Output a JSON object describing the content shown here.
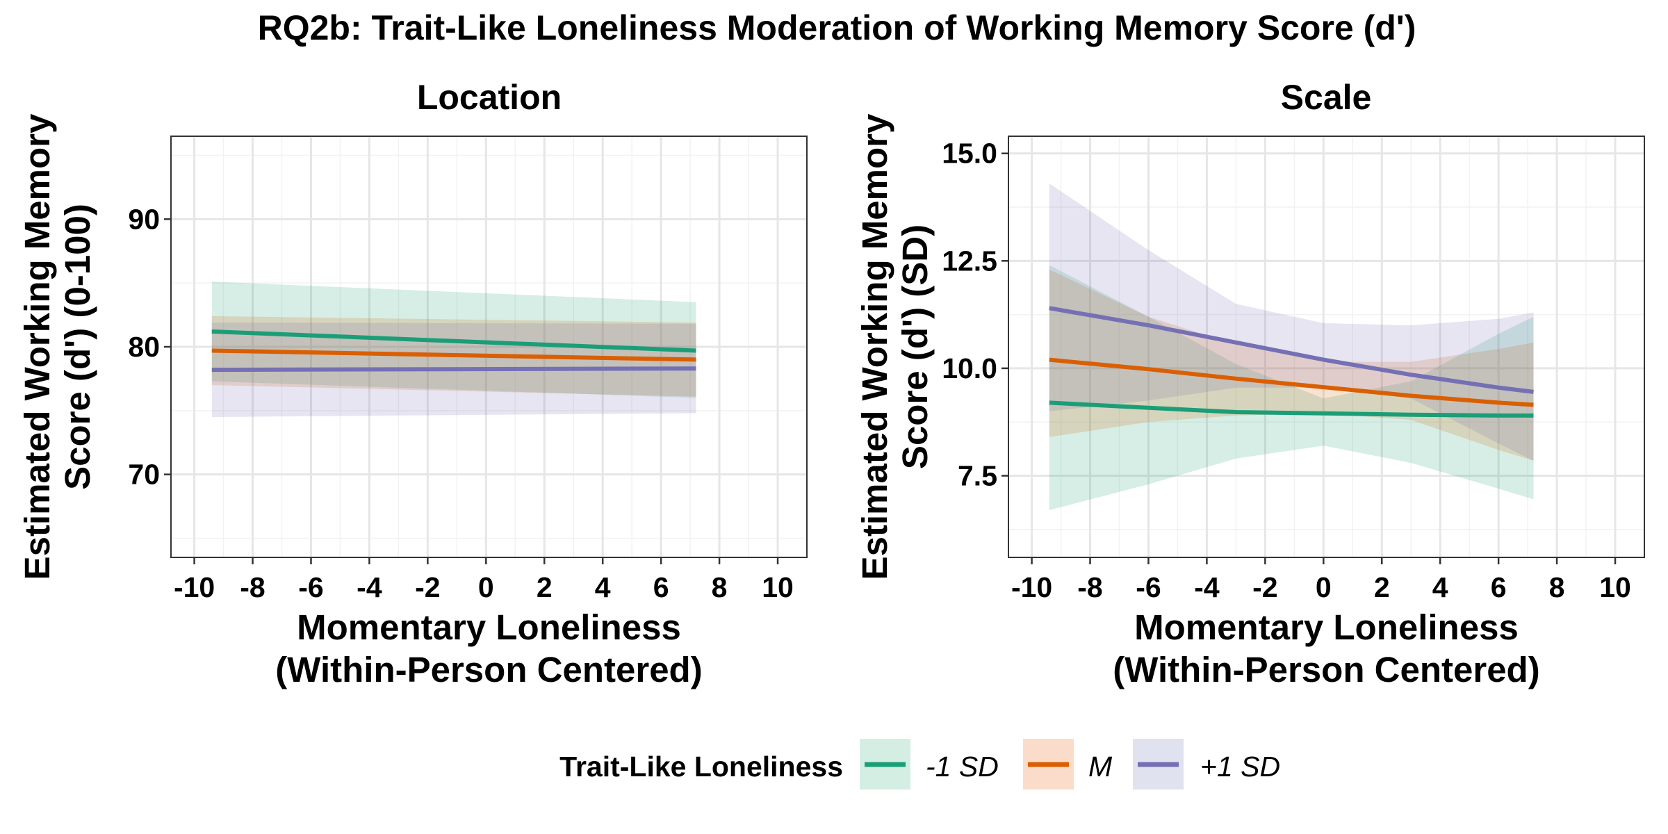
{
  "figure": {
    "title": "RQ2b: Trait-Like Loneliness Moderation of Working Memory Score (d')"
  },
  "legend": {
    "title": "Trait-Like Loneliness",
    "items": [
      {
        "label": "-1 SD",
        "color": "#1b9e77",
        "fill": "#d4eee4"
      },
      {
        "label": "M",
        "color": "#d95f02",
        "fill": "#fbdccb"
      },
      {
        "label": "+1 SD",
        "color": "#7570b3",
        "fill": "#e1e2ef"
      }
    ]
  },
  "chart_data": [
    {
      "type": "line",
      "title": "Location",
      "xlabel": [
        "Momentary Loneliness",
        "(Within-Person Centered)"
      ],
      "ylabel": [
        "Estimated Working Memory",
        "Score (d') (0-100)"
      ],
      "xlim": [
        -10.8,
        11.0
      ],
      "ylim": [
        63.5,
        96.5
      ],
      "xticks": [
        -10,
        -8,
        -6,
        -4,
        -2,
        0,
        2,
        4,
        6,
        8,
        10
      ],
      "yticks": [
        70,
        80,
        90
      ],
      "xtick_labels": [
        "-10",
        "-8",
        "-6",
        "-4",
        "-2",
        "0",
        "2",
        "4",
        "6",
        "8",
        "10"
      ],
      "ytick_labels": [
        "70",
        "80",
        "90"
      ],
      "grid": true,
      "series": [
        {
          "name": "-1 SD",
          "x": [
            -9.4,
            7.2
          ],
          "y": [
            81.2,
            79.7
          ],
          "ci_lower": [
            77.3,
            76.0
          ],
          "ci_upper": [
            85.1,
            83.5
          ]
        },
        {
          "name": "M",
          "x": [
            -9.4,
            7.2
          ],
          "y": [
            79.7,
            79.0
          ],
          "ci_lower": [
            77.0,
            76.1
          ],
          "ci_upper": [
            82.4,
            81.9
          ]
        },
        {
          "name": "+1 SD",
          "x": [
            -9.4,
            7.2
          ],
          "y": [
            78.2,
            78.3
          ],
          "ci_lower": [
            74.5,
            74.8
          ],
          "ci_upper": [
            81.9,
            81.8
          ]
        }
      ]
    },
    {
      "type": "line",
      "title": "Scale",
      "xlabel": [
        "Momentary Loneliness",
        "(Within-Person Centered)"
      ],
      "ylabel": [
        "Estimated Working Memory",
        "Score (d') (SD)"
      ],
      "xlim": [
        -10.8,
        11.0
      ],
      "ylim": [
        5.6,
        15.4
      ],
      "xticks": [
        -10,
        -8,
        -6,
        -4,
        -2,
        0,
        2,
        4,
        6,
        8,
        10
      ],
      "yticks": [
        7.5,
        10.0,
        12.5,
        15.0
      ],
      "xtick_labels": [
        "-10",
        "-8",
        "-6",
        "-4",
        "-2",
        "0",
        "2",
        "4",
        "6",
        "8",
        "10"
      ],
      "ytick_labels": [
        "7.5",
        "10.0",
        "12.5",
        "15.0"
      ],
      "grid": true,
      "series": [
        {
          "name": "-1 SD",
          "x": [
            -9.4,
            -6,
            -3,
            0,
            3,
            6,
            7.2
          ],
          "y": [
            9.2,
            9.08,
            8.98,
            8.95,
            8.92,
            8.9,
            8.9
          ],
          "ci_lower": [
            6.7,
            7.3,
            7.9,
            8.2,
            7.8,
            7.2,
            6.95
          ],
          "ci_upper": [
            12.4,
            11.2,
            10.1,
            9.3,
            9.7,
            10.8,
            11.2
          ]
        },
        {
          "name": "M",
          "x": [
            -9.4,
            -6,
            -3,
            0,
            3,
            6,
            7.2
          ],
          "y": [
            10.2,
            9.98,
            9.76,
            9.56,
            9.36,
            9.2,
            9.15
          ],
          "ci_lower": [
            8.4,
            8.75,
            8.9,
            8.95,
            8.8,
            8.1,
            7.85
          ],
          "ci_upper": [
            12.3,
            11.2,
            10.55,
            10.15,
            10.15,
            10.45,
            10.6
          ]
        },
        {
          "name": "+1 SD",
          "x": [
            -9.4,
            -6,
            -3,
            0,
            3,
            6,
            7.2
          ],
          "y": [
            11.4,
            11.0,
            10.6,
            10.2,
            9.85,
            9.55,
            9.45
          ],
          "ci_lower": [
            9.0,
            9.25,
            9.55,
            9.55,
            9.3,
            8.25,
            7.85
          ],
          "ci_upper": [
            14.3,
            12.75,
            11.5,
            11.05,
            11.0,
            11.15,
            11.3
          ]
        }
      ]
    }
  ]
}
